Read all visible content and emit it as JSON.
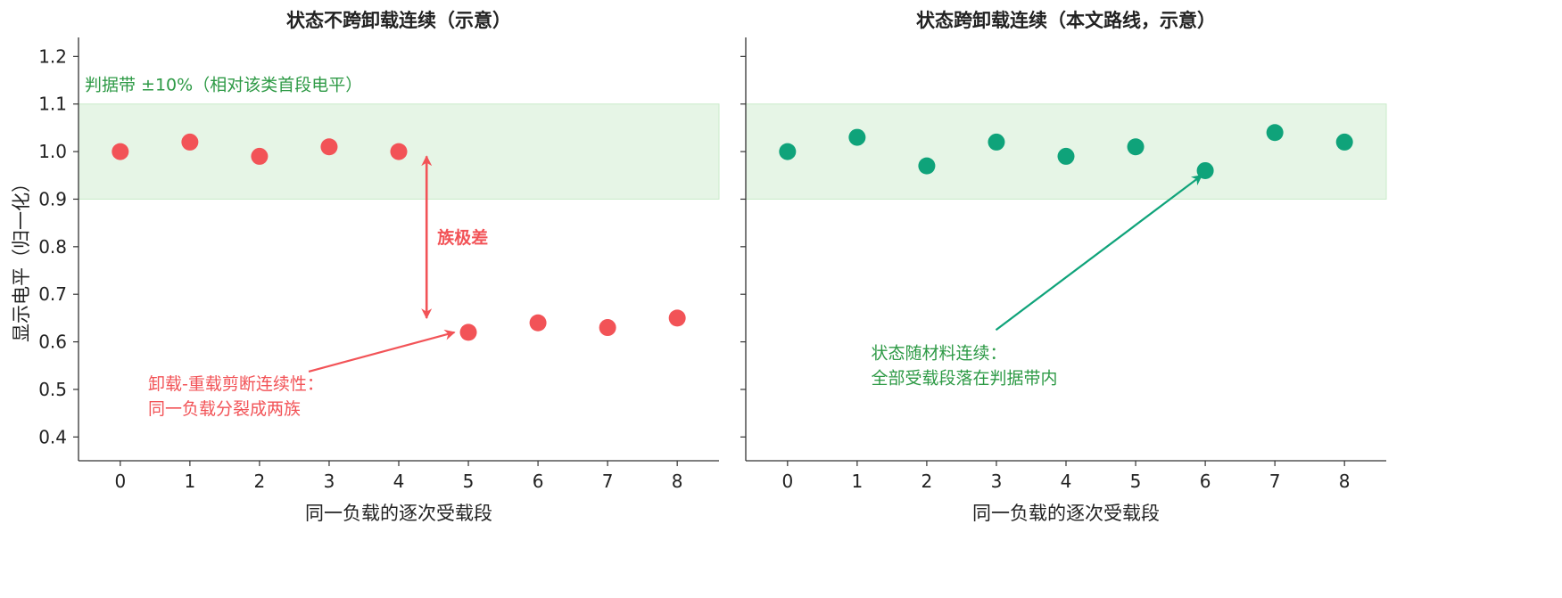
{
  "chart_data": [
    {
      "type": "scatter",
      "title": "状态不跨卸载连续（示意）",
      "xlabel": "同一负载的逐次受载段",
      "ylabel": "显示电平（归一化）",
      "x": [
        0,
        1,
        2,
        3,
        4,
        5,
        6,
        7,
        8
      ],
      "y": [
        1.0,
        1.02,
        0.99,
        1.01,
        1.0,
        0.62,
        0.64,
        0.63,
        0.65
      ],
      "xlim": [
        -0.6,
        8.6
      ],
      "ylim": [
        0.35,
        1.24
      ],
      "xticks": [
        "0",
        "1",
        "2",
        "3",
        "4",
        "5",
        "6",
        "7",
        "8"
      ],
      "yticks": [
        "0.4",
        "0.5",
        "0.6",
        "0.7",
        "0.8",
        "0.9",
        "1.0",
        "1.1",
        "1.2"
      ],
      "band": {
        "low": 0.9,
        "high": 1.1,
        "label": "判据带 ±10%（相对该类首段电平）"
      },
      "marker_color": "#f25357",
      "range_arrow": {
        "x": 4.4,
        "y_from": 0.99,
        "y_to": 0.65,
        "label": "族极差"
      },
      "annotation": {
        "lines": [
          "卸载-重载剪断连续性：",
          "同一负载分裂成两族"
        ],
        "text_at": [
          0.4,
          0.5
        ],
        "arrow_to": [
          4.8,
          0.62
        ]
      },
      "grid": false
    },
    {
      "type": "scatter",
      "title": "状态跨卸载连续（本文路线，示意）",
      "xlabel": "同一负载的逐次受载段",
      "ylabel": "",
      "x": [
        0,
        1,
        2,
        3,
        4,
        5,
        6,
        7,
        8
      ],
      "y": [
        1.0,
        1.03,
        0.97,
        1.02,
        0.99,
        1.01,
        0.96,
        1.04,
        1.02
      ],
      "xlim": [
        -0.6,
        8.6
      ],
      "ylim": [
        0.35,
        1.24
      ],
      "xticks": [
        "0",
        "1",
        "2",
        "3",
        "4",
        "5",
        "6",
        "7",
        "8"
      ],
      "yticks": [],
      "band": {
        "low": 0.9,
        "high": 1.1,
        "label": ""
      },
      "marker_color": "#0fa37a",
      "annotation": {
        "lines": [
          "状态随材料连续：",
          "全部受载段落在判据带内"
        ],
        "text_at": [
          1.2,
          0.565
        ],
        "arrow_to": [
          5.95,
          0.95
        ]
      },
      "grid": false
    }
  ],
  "colors": {
    "band_fill": "#e6f5e6",
    "band_edge": "#c9ebc9",
    "band_label": "#2e9a46",
    "left_annotation": "#f25357",
    "right_annotation": "#2e9a46",
    "right_arrow": "#0fa37a"
  }
}
